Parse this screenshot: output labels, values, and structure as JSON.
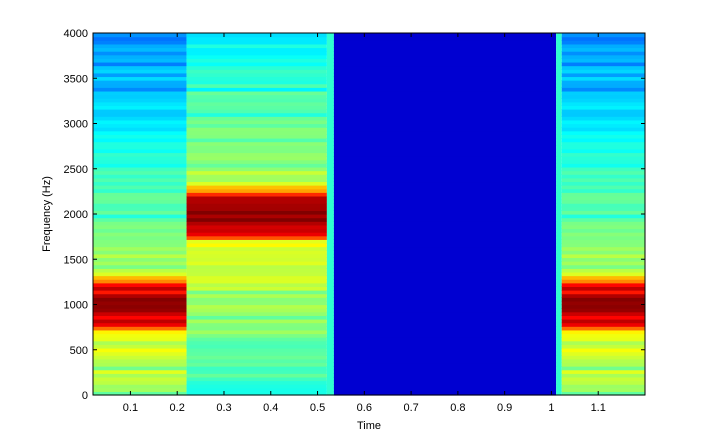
{
  "chart_data": {
    "type": "heatmap",
    "subtype": "spectrogram",
    "title": "",
    "xlabel": "Time",
    "ylabel": "Frequency (Hz)",
    "xlim": [
      0.02,
      1.2
    ],
    "ylim": [
      0,
      4000
    ],
    "xticks": [
      0.1,
      0.2,
      0.3,
      0.4,
      0.5,
      0.6,
      0.7,
      0.8,
      0.9,
      1,
      1.1
    ],
    "xtick_labels": [
      "0.1",
      "0.2",
      "0.3",
      "0.4",
      "0.5",
      "0.6",
      "0.7",
      "0.8",
      "0.9",
      "1",
      "1.1"
    ],
    "yticks": [
      0,
      500,
      1000,
      1500,
      2000,
      2500,
      3000,
      3500,
      4000
    ],
    "ytick_labels": [
      "0",
      "500",
      "1000",
      "1500",
      "2000",
      "2500",
      "3000",
      "3500",
      "4000"
    ],
    "colormap": "jet",
    "grid": false,
    "segments": [
      {
        "t_start": 0.02,
        "t_end": 0.22,
        "peak_hz": 1000,
        "kind": "tone"
      },
      {
        "t_start": 0.22,
        "t_end": 0.52,
        "peak_hz": 2000,
        "kind": "tone"
      },
      {
        "t_start": 0.52,
        "t_end": 0.535,
        "peak_hz": null,
        "kind": "transition"
      },
      {
        "t_start": 0.535,
        "t_end": 1.01,
        "peak_hz": null,
        "kind": "silence"
      },
      {
        "t_start": 1.01,
        "t_end": 1.022,
        "peak_hz": null,
        "kind": "transition"
      },
      {
        "t_start": 1.022,
        "t_end": 1.2,
        "peak_hz": 1000,
        "kind": "tone"
      }
    ]
  }
}
